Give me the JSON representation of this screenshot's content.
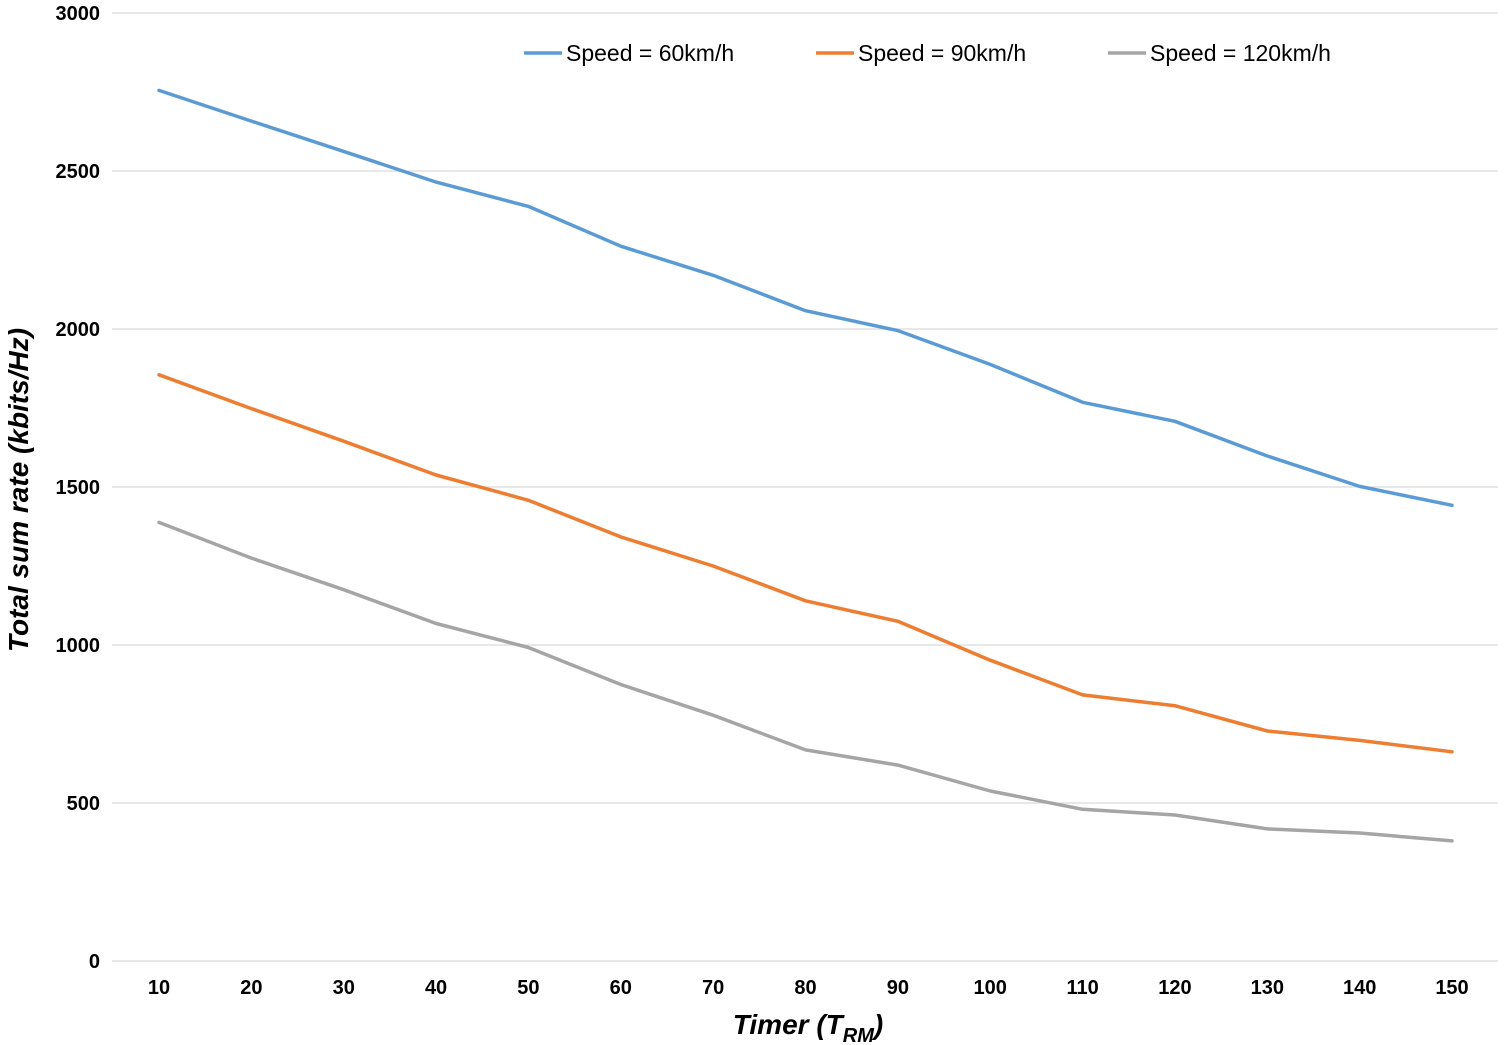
{
  "chart_data": {
    "type": "line",
    "title": "",
    "xlabel": "Timer (T",
    "xlabel_subscript": "RM",
    "xlabel_suffix": ")",
    "ylabel": "Total sum rate (kbits/Hz)",
    "ylim": [
      0,
      3000
    ],
    "yticks": [
      0,
      500,
      1000,
      1500,
      2000,
      2500,
      3000
    ],
    "grid": true,
    "legend_position": "top",
    "categories": [
      "10",
      "20",
      "30",
      "40",
      "50",
      "60",
      "70",
      "80",
      "90",
      "100",
      "110",
      "120",
      "130",
      "140",
      "150"
    ],
    "series": [
      {
        "name": "Speed = 60km/h",
        "color": "#5b9bd5",
        "values": [
          2755,
          2658,
          2562,
          2465,
          2388,
          2262,
          2170,
          2058,
          1995,
          1888,
          1768,
          1708,
          1598,
          1502,
          1442
        ]
      },
      {
        "name": "Speed = 90km/h",
        "color": "#ed7d31",
        "values": [
          1855,
          1748,
          1645,
          1538,
          1458,
          1342,
          1250,
          1140,
          1075,
          952,
          842,
          808,
          728,
          698,
          662
        ]
      },
      {
        "name": "Speed = 120km/h",
        "color": "#a5a5a5",
        "values": [
          1388,
          1275,
          1175,
          1068,
          992,
          875,
          778,
          668,
          620,
          538,
          480,
          462,
          418,
          405,
          380
        ]
      }
    ]
  }
}
